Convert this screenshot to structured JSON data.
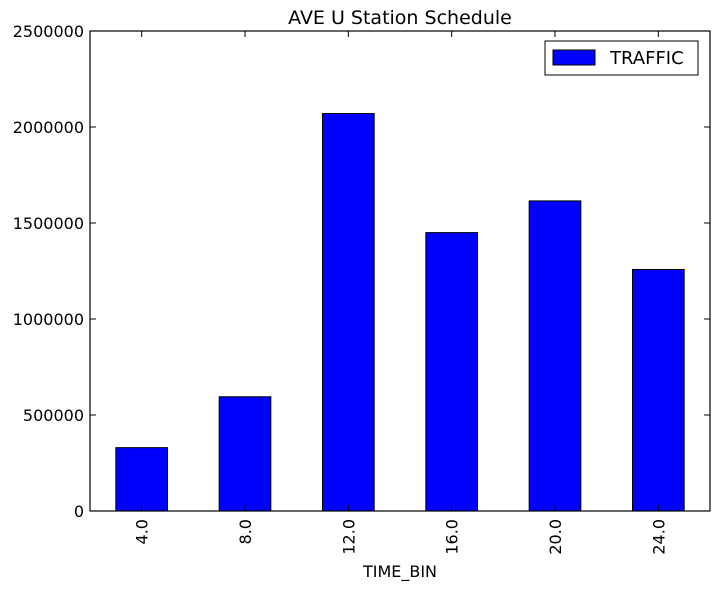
{
  "chart_data": {
    "type": "bar",
    "title": "AVE U Station Schedule",
    "xlabel": "TIME_BIN",
    "ylabel": "",
    "categories": [
      "4.0",
      "8.0",
      "12.0",
      "16.0",
      "20.0",
      "24.0"
    ],
    "series": [
      {
        "name": "TRAFFIC",
        "color": "#0000ff",
        "values": [
          330000,
          595000,
          2070000,
          1450000,
          1615000,
          1258000
        ]
      }
    ],
    "ylim": [
      0,
      2500000
    ],
    "yticks": [
      0,
      500000,
      1000000,
      1500000,
      2000000,
      2500000
    ],
    "ytick_labels": [
      "0",
      "500000",
      "1000000",
      "1500000",
      "2000000",
      "2500000"
    ],
    "grid": false,
    "legend_position": "top-right",
    "x_tick_label_rotation": "vertical"
  }
}
